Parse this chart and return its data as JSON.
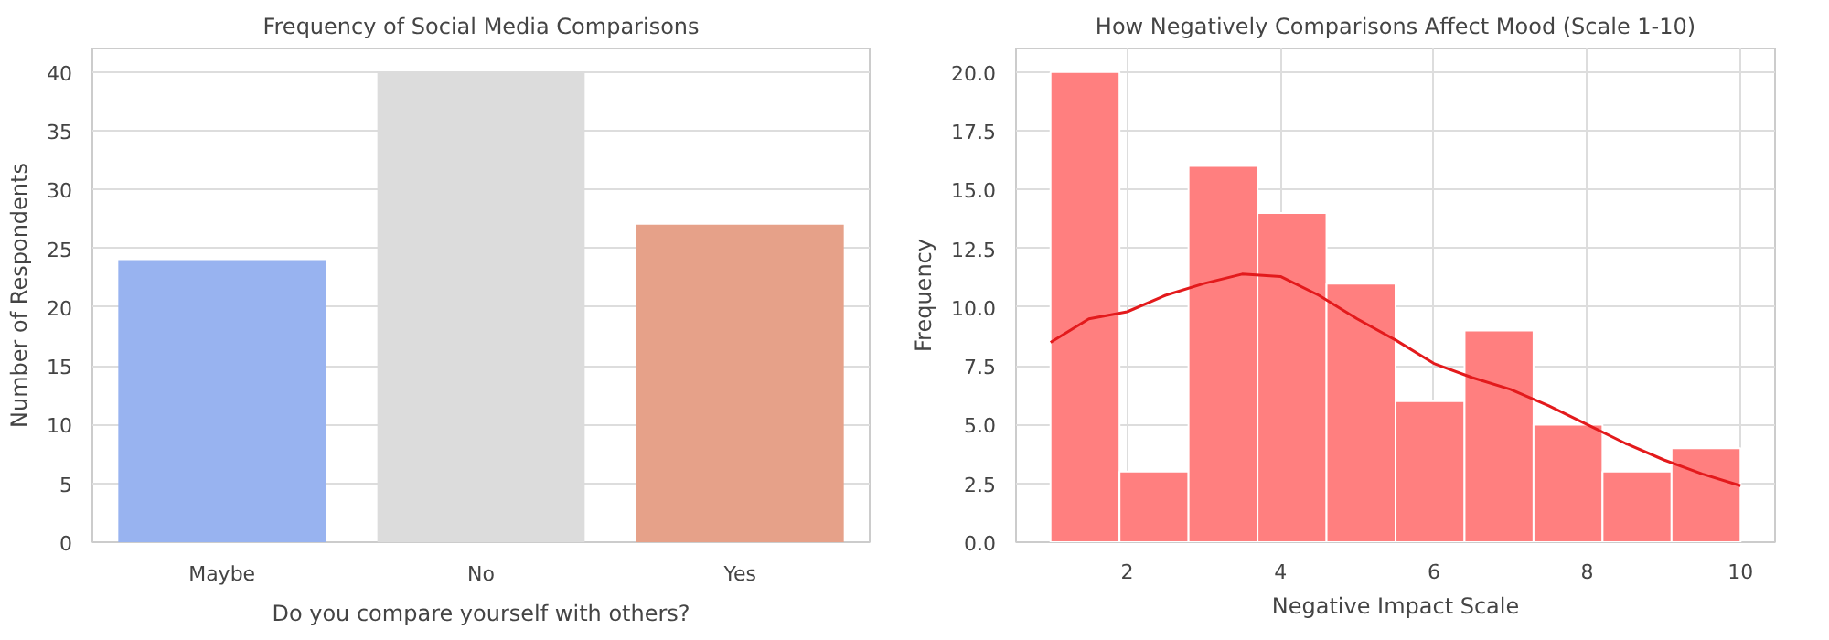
{
  "chart_data": [
    {
      "type": "bar",
      "title": "Frequency of Social Media Comparisons",
      "xlabel": "Do you compare yourself with others?",
      "ylabel": "Number of Respondents",
      "categories": [
        "Maybe",
        "No",
        "Yes"
      ],
      "values": [
        24,
        40,
        27
      ],
      "colors": [
        "#98b3f0",
        "#dcdcdc",
        "#e6a189"
      ],
      "ylim": [
        0,
        42
      ],
      "yticks": [
        0,
        5,
        10,
        15,
        20,
        25,
        30,
        35,
        40
      ],
      "grid": "y"
    },
    {
      "type": "histogram",
      "title": "How Negatively Comparisons Affect Mood (Scale 1-10)",
      "xlabel": "Negative Impact Scale",
      "ylabel": "Frequency",
      "bins": [
        1,
        1.9,
        2.8,
        3.7,
        4.6,
        5.5,
        6.4,
        7.3,
        8.2,
        9.1,
        10
      ],
      "values": [
        20,
        3,
        16,
        14,
        11,
        6,
        9,
        5,
        3,
        4
      ],
      "color": "#ff7f7f",
      "xlim": [
        0.55,
        10.45
      ],
      "xticks": [
        2,
        4,
        6,
        8,
        10
      ],
      "ylim": [
        0,
        21
      ],
      "yticks": [
        {
          "value": 0,
          "label": "0.0"
        },
        {
          "value": 2.5,
          "label": "2.5"
        },
        {
          "value": 5,
          "label": "5.0"
        },
        {
          "value": 7.5,
          "label": "7.5"
        },
        {
          "value": 10,
          "label": "10.0"
        },
        {
          "value": 12.5,
          "label": "12.5"
        },
        {
          "value": 15,
          "label": "15.0"
        },
        {
          "value": 17.5,
          "label": "17.5"
        },
        {
          "value": 20,
          "label": "20.0"
        }
      ],
      "grid": true,
      "series": [
        {
          "type": "line",
          "color": "#e31a1c",
          "x": [
            1,
            1.5,
            2,
            2.5,
            3,
            3.5,
            4,
            4.5,
            5,
            5.5,
            6,
            6.5,
            7,
            7.5,
            8,
            8.5,
            9,
            9.5,
            10
          ],
          "values": [
            8.5,
            9.5,
            9.8,
            10.5,
            11.0,
            11.4,
            11.3,
            10.5,
            9.5,
            8.6,
            7.6,
            7.0,
            6.5,
            5.8,
            5.0,
            4.2,
            3.5,
            2.9,
            2.4
          ]
        }
      ]
    }
  ]
}
